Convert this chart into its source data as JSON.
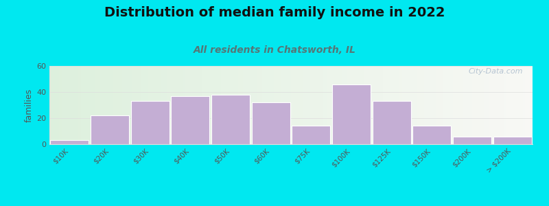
{
  "title": "Distribution of median family income in 2022",
  "subtitle": "All residents in Chatsworth, IL",
  "ylabel": "families",
  "categories": [
    "$10K",
    "$20K",
    "$30K",
    "$40K",
    "$50K",
    "$60K",
    "$75K",
    "$100K",
    "$125K",
    "$150K",
    "$200K",
    "> $200K"
  ],
  "values": [
    3,
    22,
    33,
    37,
    38,
    32,
    14,
    46,
    33,
    14,
    6,
    6
  ],
  "bar_color": "#c4aed4",
  "bar_edge_color": "#ffffff",
  "ylim": [
    0,
    60
  ],
  "yticks": [
    0,
    20,
    40,
    60
  ],
  "background_outer": "#00e8f0",
  "background_inner_left": "#ddf0dd",
  "background_inner_right": "#f8f8f5",
  "grid_color": "#dddddd",
  "title_fontsize": 14,
  "subtitle_fontsize": 10,
  "subtitle_color": "#557777",
  "ylabel_color": "#555555",
  "tick_label_color": "#555555",
  "watermark": "City-Data.com",
  "watermark_color": "#aabbcc"
}
